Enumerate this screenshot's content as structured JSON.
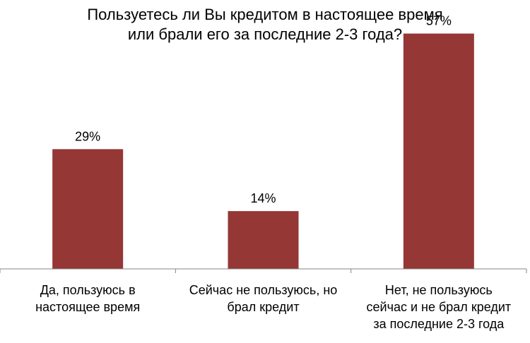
{
  "chart_data": {
    "type": "bar",
    "title": [
      "Пользуетесь ли Вы кредитом в настоящее время",
      "или брали его за последние 2-3 года?"
    ],
    "categories": [
      [
        "Да, пользуюсь в",
        "настоящее время"
      ],
      [
        "Сейчас не пользуюсь, но",
        "брал кредит"
      ],
      [
        "Нет, не пользуюсь",
        "сейчас и не брал кредит",
        "за последние  2-3 года"
      ]
    ],
    "values": [
      29,
      14,
      57
    ],
    "data_labels": [
      "29%",
      "14%",
      "57%"
    ],
    "ylim": [
      0,
      60
    ],
    "grid": false,
    "legend": "none",
    "bar_color": "#953735",
    "axis_color": "#868686"
  }
}
